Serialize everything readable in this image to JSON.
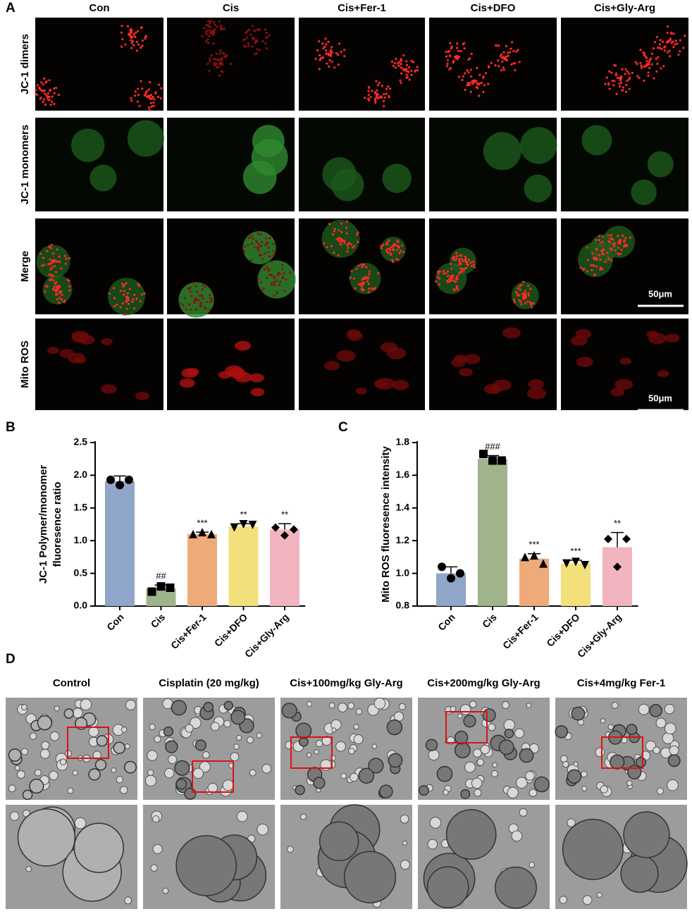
{
  "panels": {
    "A": {
      "letter": "A",
      "columns": [
        "Con",
        "Cis",
        "Cis+Fer-1",
        "Cis+DFO",
        "Cis+Gly-Arg"
      ],
      "rows": [
        "JC-1 dimers",
        "JC-1 monomers",
        "Merge",
        "Mito ROS"
      ],
      "scale_bar": "50μm"
    },
    "B": {
      "letter": "B"
    },
    "C": {
      "letter": "C"
    },
    "D": {
      "letter": "D",
      "columns": [
        "Control",
        "Cisplatin (20 mg/kg)",
        "Cis+100mg/kg Gly-Arg",
        "Cis+200mg/kg Gly-Arg",
        "Cis+4mg/kg Fer-1"
      ]
    }
  },
  "chart_data": [
    {
      "type": "bar",
      "ylabel": [
        "JC-1 Polymer/monomer",
        "fluoresence ratio"
      ],
      "categories": [
        "Con",
        "Cis",
        "Cis+Fer-1",
        "Cis+DFO",
        "Cis+Gly-Arg"
      ],
      "values": [
        1.91,
        0.27,
        1.1,
        1.22,
        1.17
      ],
      "errors": [
        0.08,
        0.05,
        0.03,
        0.04,
        0.09
      ],
      "points": [
        [
          1.93,
          1.85,
          1.93
        ],
        [
          0.22,
          0.3,
          0.28
        ],
        [
          1.1,
          1.13,
          1.1
        ],
        [
          1.2,
          1.25,
          1.24
        ],
        [
          1.2,
          1.08,
          1.17
        ]
      ],
      "markers": [
        "circle",
        "square",
        "triangle",
        "triangle-down",
        "diamond"
      ],
      "annotations": [
        null,
        "##",
        "***",
        "**",
        "**"
      ],
      "colors": [
        "#8fa6c9",
        "#a0b48b",
        "#eeab79",
        "#f3e07b",
        "#f2b4be"
      ],
      "ylim": [
        0,
        2.5
      ],
      "yticks": [
        {
          "value": 0,
          "label": "0.0"
        },
        0.5,
        {
          "value": 1,
          "label": "1.0"
        },
        1.5,
        {
          "value": 2,
          "label": "2.0"
        },
        2.5
      ]
    },
    {
      "type": "bar",
      "ylabel": [
        "Mito ROS fluoresence intensity"
      ],
      "categories": [
        "Con",
        "Cis",
        "Cis+Fer-1",
        "Cis+DFO",
        "Cis+Gly-Arg"
      ],
      "values": [
        1.0,
        1.7,
        1.09,
        1.06,
        1.16
      ],
      "errors": [
        0.04,
        0.02,
        0.03,
        0.02,
        0.09
      ],
      "points": [
        [
          1.04,
          0.97,
          1.0
        ],
        [
          1.73,
          1.69,
          1.69
        ],
        [
          1.1,
          1.11,
          1.06
        ],
        [
          1.06,
          1.07,
          1.05
        ],
        [
          1.21,
          1.04,
          1.21
        ]
      ],
      "markers": [
        "circle",
        "square",
        "triangle",
        "triangle-down",
        "diamond"
      ],
      "annotations": [
        null,
        "###",
        "***",
        "***",
        "**"
      ],
      "colors": [
        "#8fa6c9",
        "#a0b48b",
        "#eeab79",
        "#f3e07b",
        "#f2b4be"
      ],
      "ylim": [
        0.8,
        1.8
      ],
      "yticks": [
        0.8,
        {
          "value": 1,
          "label": "1.0"
        },
        1.2,
        1.4,
        1.6,
        1.8
      ]
    }
  ]
}
